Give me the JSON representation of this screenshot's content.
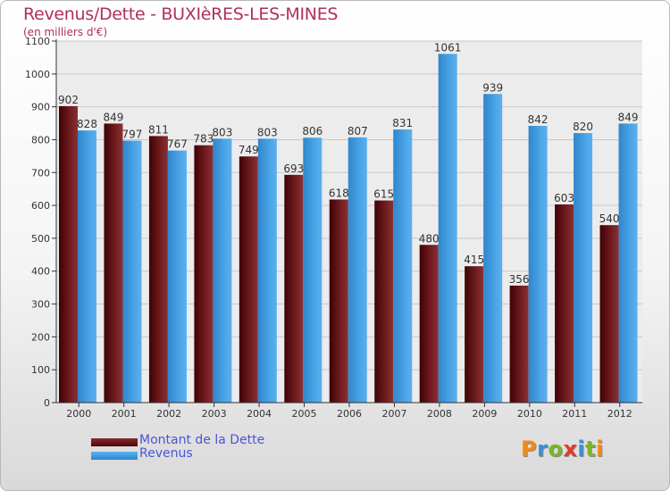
{
  "title": "Revenus/Dette - BUXIèRES-LES-MINES",
  "subtitle": "(en milliers d'€)",
  "colors": {
    "debt": "#6e1a1d",
    "revenue": "#3f9bdf",
    "title": "#b0305a",
    "legend_text": "#4a55d8"
  },
  "legend": [
    {
      "name": "Montant de la Dette",
      "color": "#6e1a1d"
    },
    {
      "name": "Revenus",
      "color": "#3f9bdf"
    }
  ],
  "logo": {
    "text": "Proxiti",
    "letters": [
      {
        "ch": "P",
        "color": "#f08a1a"
      },
      {
        "ch": "r",
        "color": "#3b8fd6"
      },
      {
        "ch": "o",
        "color": "#7ab52a"
      },
      {
        "ch": "x",
        "color": "#e23a2a"
      },
      {
        "ch": "i",
        "color": "#3b8fd6"
      },
      {
        "ch": "t",
        "color": "#7ab52a"
      },
      {
        "ch": "i",
        "color": "#f08a1a"
      }
    ]
  },
  "chart_data": {
    "type": "bar",
    "categories": [
      "2000",
      "2001",
      "2002",
      "2003",
      "2004",
      "2005",
      "2006",
      "2007",
      "2008",
      "2009",
      "2010",
      "2011",
      "2012"
    ],
    "series": [
      {
        "name": "Montant de la Dette",
        "values": [
          902,
          849,
          811,
          783,
          749,
          693,
          618,
          615,
          480,
          415,
          356,
          603,
          540
        ]
      },
      {
        "name": "Revenus",
        "values": [
          828,
          797,
          767,
          803,
          803,
          806,
          807,
          831,
          1061,
          939,
          842,
          820,
          849
        ]
      }
    ],
    "ylim": [
      0,
      1100
    ],
    "yticks": [
      0,
      100,
      200,
      300,
      400,
      500,
      600,
      700,
      800,
      900,
      1000,
      1100
    ],
    "grid": true,
    "legend_position": "bottom-left"
  }
}
